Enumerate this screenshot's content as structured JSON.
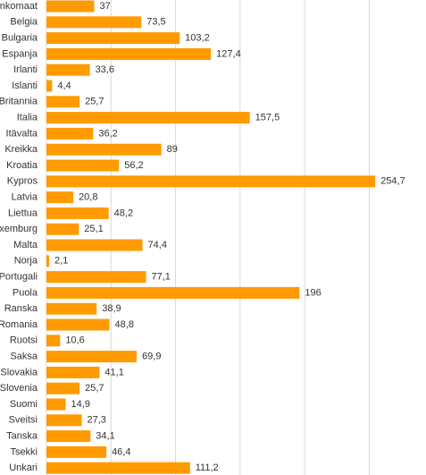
{
  "chart_data": {
    "type": "bar",
    "orientation": "horizontal",
    "color": "#ff9a00",
    "grid": true,
    "categories": [
      "nkomaat",
      "Belgia",
      "Bulgaria",
      "Espanja",
      "Irlanti",
      "Islanti",
      "Britannia",
      "Italia",
      "Itävalta",
      "Kreikka",
      "Kroatia",
      "Kypros",
      "Latvia",
      "Liettua",
      "xemburg",
      "Malta",
      "Norja",
      "Portugali",
      "Puola",
      "Ranska",
      "Romania",
      "Ruotsi",
      "Saksa",
      "Slovakia",
      "Slovenia",
      "Suomi",
      "Sveitsi",
      "Tanska",
      "Tsekki",
      "Unkari"
    ],
    "values": [
      37,
      73.5,
      103.2,
      127.4,
      33.6,
      4.4,
      25.7,
      157.5,
      36.2,
      89,
      56.2,
      254.7,
      20.8,
      48.2,
      25.1,
      74.4,
      2.1,
      77.1,
      196,
      38.9,
      48.8,
      10.6,
      69.9,
      41.1,
      25.7,
      14.9,
      27.3,
      34.1,
      46.4,
      111.2
    ],
    "value_labels": [
      "37",
      "73,5",
      "103,2",
      "127,4",
      "33,6",
      "4,4",
      "25,7",
      "157,5",
      "36,2",
      "89",
      "56,2",
      "254,7",
      "20,8",
      "48,2",
      "25,1",
      "74,4",
      "2,1",
      "77,1",
      "196",
      "38,9",
      "48,8",
      "10,6",
      "69,9",
      "41,1",
      "25,7",
      "14,9",
      "27,3",
      "34,1",
      "46,4",
      "111,2"
    ],
    "xlim": [
      0,
      294
    ],
    "xticks": [
      0,
      50,
      100,
      150,
      200,
      250
    ]
  }
}
